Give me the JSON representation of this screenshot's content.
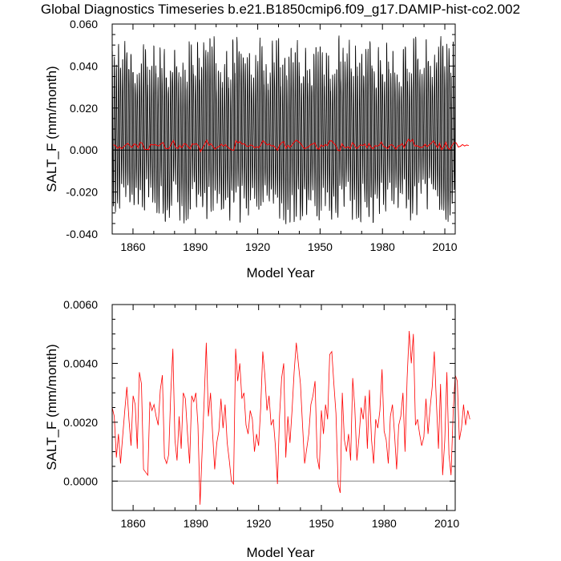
{
  "title": "Global Diagnostics Timeseries b.e21.B1850cmip6.f09_g17.DAMIP-hist-co2.002",
  "colors": {
    "monthly": "#000000",
    "annual": "#ff0000",
    "zero_line": "#808080"
  },
  "chart_data": [
    {
      "type": "line",
      "panel": "monthly",
      "xlabel": "Model Year",
      "ylabel": "SALT_F (mm/month)",
      "xlim": [
        1850,
        2015
      ],
      "ylim": [
        -0.04,
        0.06
      ],
      "xticks": [
        1860,
        1890,
        1920,
        1950,
        1980,
        2010
      ],
      "yticks": [
        -0.04,
        -0.02,
        0.0,
        0.02,
        0.04,
        0.06
      ],
      "ytick_labels": [
        "-0.040",
        "-0.020",
        "0.000",
        "0.020",
        "0.040",
        "0.060"
      ],
      "grid": false,
      "series": [
        {
          "color": "#000000",
          "note": "monthly values oscillating seasonally, peaks about 0.035-0.055, troughs about -0.015 to -0.035",
          "x_start": 1850,
          "x_end": 2014,
          "seasonal_max_range": [
            0.03,
            0.055
          ],
          "seasonal_min_range": [
            -0.035,
            -0.015
          ]
        },
        {
          "color": "#ff0000",
          "ref": "annual"
        }
      ]
    },
    {
      "type": "line",
      "panel": "annual",
      "xlabel": "Model Year",
      "ylabel": "SALT_F (mm/month)",
      "xlim": [
        1850,
        2014
      ],
      "ylim": [
        -0.001,
        0.006
      ],
      "xticks": [
        1860,
        1890,
        1920,
        1950,
        1980,
        2010
      ],
      "yticks": [
        0.0,
        0.002,
        0.004,
        0.006
      ],
      "ytick_labels": [
        "0.0000",
        "0.0020",
        "0.0040",
        "0.0060"
      ],
      "grid": false,
      "reference_line": 0.0,
      "series": [
        {
          "color": "#ff0000",
          "x_start": 1850,
          "values": [
            0.0025,
            0.0022,
            0.0008,
            0.0016,
            0.0006,
            0.0015,
            0.0024,
            0.0032,
            0.0021,
            0.0012,
            0.0029,
            0.0026,
            0.0011,
            0.0037,
            0.0033,
            0.0004,
            0.0003,
            0.0002,
            0.0027,
            0.0024,
            0.0026,
            0.0022,
            0.0019,
            0.0031,
            0.0036,
            0.0008,
            0.0006,
            0.0009,
            0.003,
            0.0045,
            0.0014,
            0.0007,
            0.0022,
            0.0011,
            0.003,
            0.0028,
            0.0016,
            0.0006,
            0.0029,
            0.0027,
            0.003,
            0.0019,
            -0.0008,
            0.001,
            0.0028,
            0.0047,
            0.0022,
            0.003,
            0.0016,
            0.0004,
            0.0013,
            0.0017,
            0.0028,
            0.0018,
            0.0026,
            0.0013,
            0.0007,
            0.0,
            -0.0001,
            0.0045,
            0.0034,
            0.004,
            0.0028,
            0.003,
            0.0019,
            0.0016,
            0.0024,
            0.0021,
            0.001,
            0.0016,
            0.0012,
            0.0025,
            0.0044,
            0.0036,
            0.0024,
            0.0029,
            0.0019,
            0.0021,
            0.0012,
            -0.0001,
            0.0022,
            0.0035,
            0.004,
            0.0008,
            0.0022,
            0.0013,
            0.0024,
            0.0037,
            0.0047,
            0.004,
            0.0033,
            0.0019,
            0.0006,
            0.0011,
            0.0016,
            0.0026,
            0.0029,
            0.0034,
            0.0008,
            0.0004,
            0.0024,
            0.0016,
            0.0026,
            0.0021,
            0.0043,
            0.0044,
            0.0033,
            0.0023,
            -0.0001,
            -0.0004,
            0.003,
            0.0014,
            0.001,
            0.0016,
            0.0007,
            0.0035,
            0.0025,
            0.0007,
            0.0015,
            0.0025,
            0.0021,
            0.0029,
            0.0011,
            0.0031,
            0.0014,
            0.0006,
            0.0021,
            0.0018,
            0.0024,
            0.0038,
            0.0017,
            0.0014,
            0.0006,
            0.0022,
            0.0026,
            0.0016,
            0.0004,
            0.0019,
            0.0022,
            0.003,
            0.001,
            0.0035,
            0.0051,
            0.004,
            0.005,
            0.0019,
            0.0021,
            0.0016,
            0.0012,
            0.0015,
            0.0028,
            0.0016,
            0.0025,
            0.0032,
            0.0044,
            0.0027,
            0.0011,
            0.0033,
            0.0002,
            0.0014,
            0.0037,
            0.0009,
            0.0002,
            0.0023,
            0.0036,
            0.0034,
            0.0014,
            0.0018,
            0.0026,
            0.0019,
            0.0024,
            0.0021
          ]
        }
      ]
    }
  ]
}
